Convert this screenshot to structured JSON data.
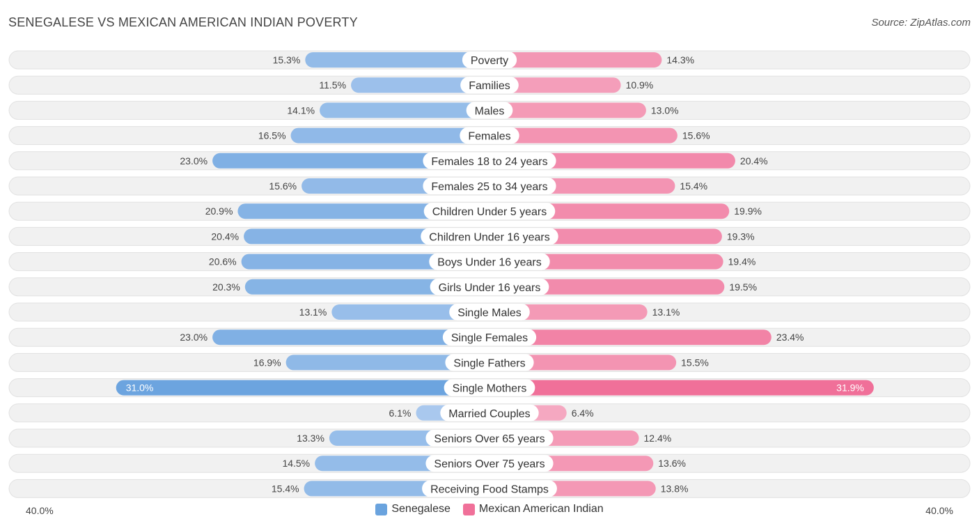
{
  "header": {
    "title": "SENEGALESE VS MEXICAN AMERICAN INDIAN POVERTY",
    "source": "Source: ZipAtlas.com"
  },
  "colors": {
    "left": "#6aa3de",
    "left_light": "#a9c8ee",
    "right": "#f07099",
    "right_light": "#f5a9c1",
    "row_bg": "#f1f1f1",
    "row_border": "#e1e1e1"
  },
  "chart_data": {
    "type": "bar",
    "orientation": "horizontal-diverging",
    "title": "SENEGALESE VS MEXICAN AMERICAN INDIAN POVERTY",
    "xlim": [
      -40,
      40
    ],
    "axis_min_label": "40.0%",
    "axis_max_label": "40.0%",
    "categories": [
      "Poverty",
      "Families",
      "Males",
      "Females",
      "Females 18 to 24 years",
      "Females 25 to 34 years",
      "Children Under 5 years",
      "Children Under 16 years",
      "Boys Under 16 years",
      "Girls Under 16 years",
      "Single Males",
      "Single Females",
      "Single Fathers",
      "Single Mothers",
      "Married Couples",
      "Seniors Over 65 years",
      "Seniors Over 75 years",
      "Receiving Food Stamps"
    ],
    "series": [
      {
        "name": "Senegalese",
        "values": [
          15.3,
          11.5,
          14.1,
          16.5,
          23.0,
          15.6,
          20.9,
          20.4,
          20.6,
          20.3,
          13.1,
          23.0,
          16.9,
          31.0,
          6.1,
          13.3,
          14.5,
          15.4
        ]
      },
      {
        "name": "Mexican American Indian",
        "values": [
          14.3,
          10.9,
          13.0,
          15.6,
          20.4,
          15.4,
          19.9,
          19.3,
          19.4,
          19.5,
          13.1,
          23.4,
          15.5,
          31.9,
          6.4,
          12.4,
          13.6,
          13.8
        ]
      }
    ],
    "legend": [
      "Senegalese",
      "Mexican American Indian"
    ],
    "legend_position": "bottom-center"
  }
}
